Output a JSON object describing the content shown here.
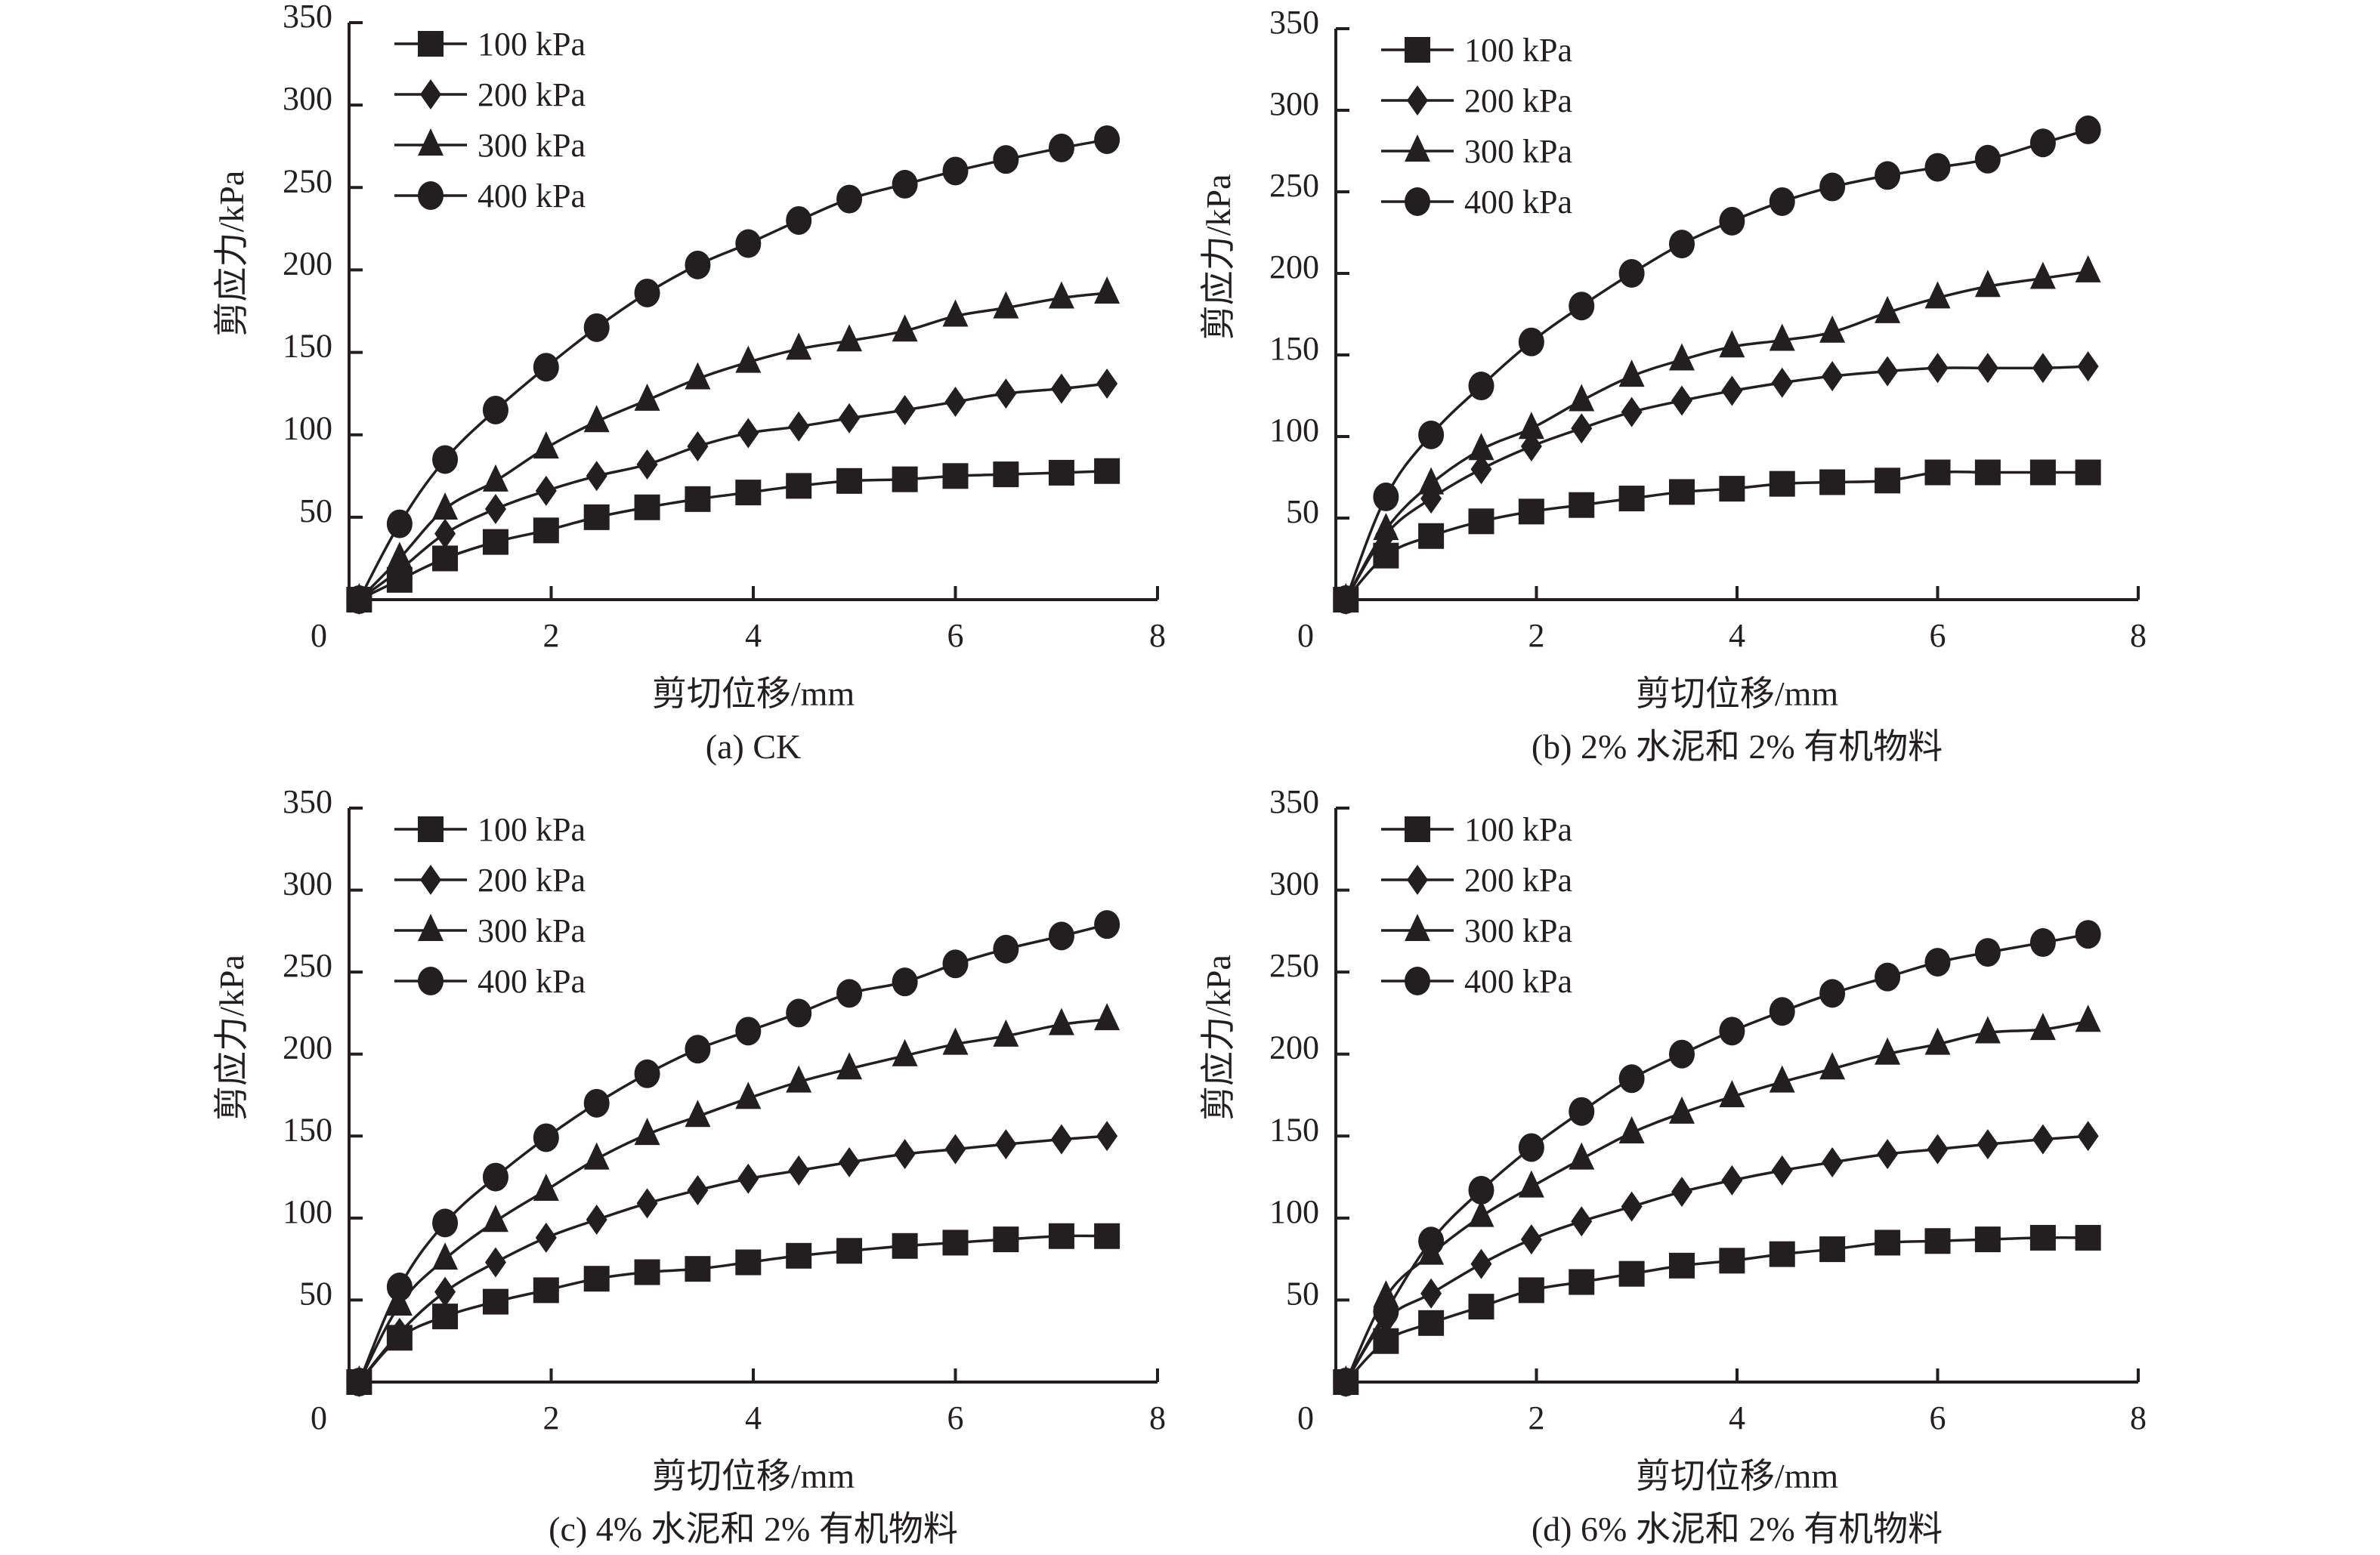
{
  "chart_data": [
    {
      "type": "line",
      "panel": "a",
      "caption": "(a) CK",
      "xlabel": "剪切位移/mm",
      "ylabel": "剪应力/kPa",
      "xlim": [
        0,
        8
      ],
      "ylim": [
        0,
        350
      ],
      "xticks": [
        "0",
        "2",
        "4",
        "6",
        "8"
      ],
      "yticks": [
        "50",
        "100",
        "150",
        "200",
        "250",
        "300",
        "350"
      ],
      "grid": false,
      "legend_position": "top-left",
      "x": [
        0.1,
        0.5,
        0.95,
        1.45,
        1.95,
        2.45,
        2.95,
        3.45,
        3.95,
        4.45,
        4.95,
        5.5,
        6.0,
        6.5,
        7.05,
        7.5
      ],
      "series": [
        {
          "name": "100 kPa",
          "marker": "square",
          "values": [
            0,
            12,
            25,
            35,
            42,
            50,
            56,
            61,
            65,
            69,
            72,
            73,
            75,
            76,
            77,
            78
          ]
        },
        {
          "name": "200 kPa",
          "marker": "diamond",
          "values": [
            0,
            18,
            40,
            55,
            66,
            75,
            82,
            93,
            101,
            105,
            110,
            115,
            120,
            125,
            128,
            131
          ]
        },
        {
          "name": "300 kPa",
          "marker": "triangle",
          "values": [
            0,
            25,
            55,
            72,
            92,
            108,
            121,
            134,
            144,
            152,
            157,
            163,
            172,
            177,
            183,
            186
          ]
        },
        {
          "name": "400 kPa",
          "marker": "circle",
          "values": [
            0,
            46,
            85,
            115,
            141,
            165,
            186,
            203,
            216,
            230,
            243,
            252,
            260,
            267,
            274,
            279
          ]
        }
      ]
    },
    {
      "type": "line",
      "panel": "b",
      "caption": "(b) 2% 水泥和 2% 有机物料",
      "xlabel": "剪切位移/mm",
      "ylabel": "剪应力/kPa",
      "xlim": [
        0,
        8
      ],
      "ylim": [
        0,
        350
      ],
      "xticks": [
        "0",
        "2",
        "4",
        "6",
        "8"
      ],
      "yticks": [
        "50",
        "100",
        "150",
        "200",
        "250",
        "300",
        "350"
      ],
      "grid": false,
      "legend_position": "top-left",
      "x": [
        0.1,
        0.5,
        0.95,
        1.45,
        1.95,
        2.45,
        2.95,
        3.45,
        3.95,
        4.45,
        4.95,
        5.5,
        6.0,
        6.5,
        7.05,
        7.5
      ],
      "series": [
        {
          "name": "100 kPa",
          "marker": "square",
          "values": [
            0,
            27,
            39,
            48,
            54,
            58,
            62,
            66,
            68,
            71,
            72,
            73,
            78,
            78,
            78,
            78
          ]
        },
        {
          "name": "200 kPa",
          "marker": "diamond",
          "values": [
            0,
            40,
            62,
            80,
            94,
            105,
            115,
            122,
            128,
            133,
            137,
            140,
            142,
            142,
            142,
            143
          ]
        },
        {
          "name": "300 kPa",
          "marker": "triangle",
          "values": [
            0,
            43,
            71,
            92,
            105,
            122,
            137,
            147,
            155,
            159,
            164,
            176,
            185,
            192,
            197,
            201
          ]
        },
        {
          "name": "400 kPa",
          "marker": "circle",
          "values": [
            0,
            63,
            101,
            131,
            158,
            180,
            200,
            218,
            232,
            244,
            253,
            260,
            265,
            270,
            280,
            288
          ]
        }
      ]
    },
    {
      "type": "line",
      "panel": "c",
      "caption": "(c) 4% 水泥和 2% 有机物料",
      "xlabel": "剪切位移/mm",
      "ylabel": "剪应力/kPa",
      "xlim": [
        0,
        8
      ],
      "ylim": [
        0,
        350
      ],
      "xticks": [
        "0",
        "2",
        "4",
        "6",
        "8"
      ],
      "yticks": [
        "50",
        "100",
        "150",
        "200",
        "250",
        "300",
        "350"
      ],
      "grid": false,
      "legend_position": "top-left",
      "x": [
        0.1,
        0.5,
        0.95,
        1.45,
        1.95,
        2.45,
        2.95,
        3.45,
        3.95,
        4.45,
        4.95,
        5.5,
        6.0,
        6.5,
        7.05,
        7.5
      ],
      "series": [
        {
          "name": "100 kPa",
          "marker": "square",
          "values": [
            0,
            27,
            40,
            49,
            56,
            63,
            67,
            69,
            73,
            77,
            80,
            83,
            85,
            87,
            89,
            89
          ]
        },
        {
          "name": "200 kPa",
          "marker": "diamond",
          "values": [
            0,
            30,
            55,
            73,
            88,
            99,
            109,
            117,
            124,
            129,
            134,
            139,
            142,
            145,
            148,
            150
          ]
        },
        {
          "name": "300 kPa",
          "marker": "triangle",
          "values": [
            0,
            47,
            75,
            98,
            117,
            136,
            151,
            162,
            173,
            183,
            191,
            199,
            206,
            211,
            218,
            221
          ]
        },
        {
          "name": "400 kPa",
          "marker": "circle",
          "values": [
            0,
            58,
            97,
            125,
            149,
            170,
            188,
            203,
            214,
            225,
            237,
            244,
            255,
            264,
            272,
            279
          ]
        }
      ]
    },
    {
      "type": "line",
      "panel": "d",
      "caption": "(d) 6% 水泥和 2% 有机物料",
      "xlabel": "剪切位移/mm",
      "ylabel": "剪应力/kPa",
      "xlim": [
        0,
        8
      ],
      "ylim": [
        0,
        350
      ],
      "xticks": [
        "0",
        "2",
        "4",
        "6",
        "8"
      ],
      "yticks": [
        "50",
        "100",
        "150",
        "200",
        "250",
        "300",
        "350"
      ],
      "grid": false,
      "legend_position": "top-left",
      "x": [
        0.1,
        0.5,
        0.95,
        1.45,
        1.95,
        2.45,
        2.95,
        3.45,
        3.95,
        4.45,
        4.95,
        5.5,
        6.0,
        6.5,
        7.05,
        7.5
      ],
      "series": [
        {
          "name": "100 kPa",
          "marker": "square",
          "values": [
            0,
            25,
            36,
            46,
            56,
            61,
            66,
            71,
            74,
            78,
            81,
            85,
            86,
            87,
            88,
            88
          ]
        },
        {
          "name": "200 kPa",
          "marker": "diamond",
          "values": [
            0,
            38,
            54,
            72,
            87,
            98,
            107,
            116,
            123,
            129,
            134,
            139,
            142,
            145,
            148,
            150
          ]
        },
        {
          "name": "300 kPa",
          "marker": "triangle",
          "values": [
            0,
            52,
            78,
            101,
            119,
            136,
            152,
            164,
            174,
            183,
            191,
            200,
            206,
            213,
            215,
            220
          ]
        },
        {
          "name": "400 kPa",
          "marker": "circle",
          "values": [
            0,
            43,
            86,
            117,
            143,
            165,
            185,
            200,
            214,
            226,
            237,
            247,
            256,
            262,
            268,
            273
          ]
        }
      ]
    }
  ],
  "style": {
    "ink": "#231f20",
    "background": "#ffffff"
  }
}
